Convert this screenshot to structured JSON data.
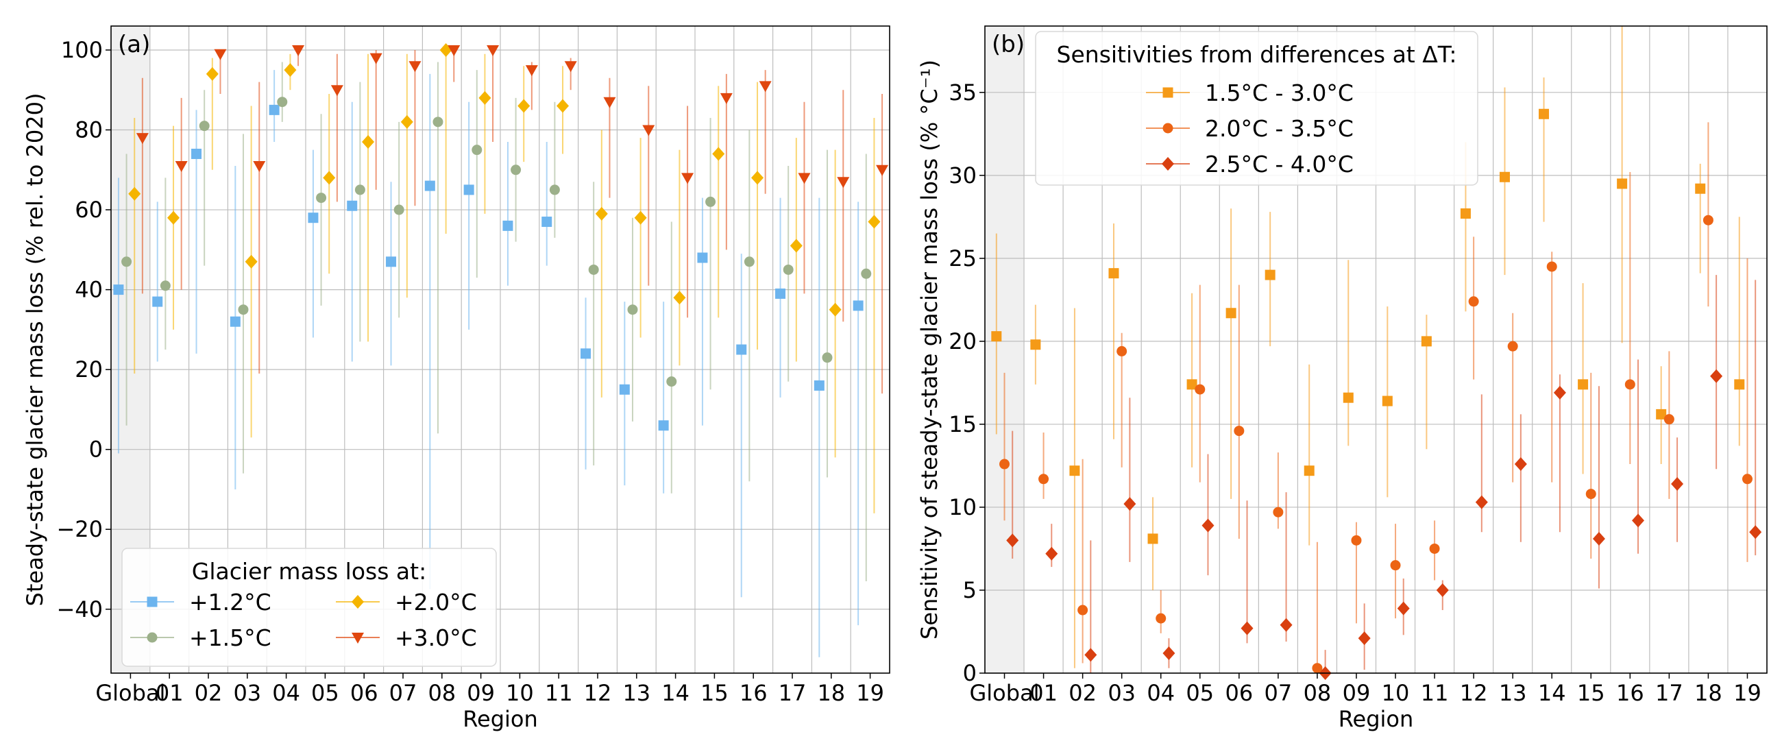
{
  "chart_data": [
    {
      "type": "scatter",
      "panel_label": "(a)",
      "xlabel": "Region",
      "ylabel": "Steady-state glacier mass loss (% rel. to 2020)",
      "categories": [
        "Global",
        "01",
        "02",
        "03",
        "04",
        "05",
        "06",
        "07",
        "08",
        "09",
        "10",
        "11",
        "12",
        "13",
        "14",
        "15",
        "16",
        "17",
        "18",
        "19"
      ],
      "ylim": [
        -56,
        106
      ],
      "yticks": [
        -40,
        -20,
        0,
        20,
        40,
        60,
        80,
        100
      ],
      "ytick_labels": [
        "−40",
        "−20",
        "0",
        "20",
        "40",
        "60",
        "80",
        "100"
      ],
      "grid": true,
      "legend": {
        "title": "Glacier mass loss at:",
        "placement": "bottom-left"
      },
      "series": [
        {
          "name": "+1.2°C",
          "marker": "square",
          "color": "#6cb4ee",
          "values": [
            40,
            37,
            74,
            32,
            85,
            58,
            61,
            47,
            66,
            65,
            56,
            57,
            24,
            15,
            6,
            48,
            25,
            39,
            16,
            36
          ],
          "low": [
            -1,
            22,
            24,
            -10,
            77,
            28,
            22,
            21,
            -35,
            30,
            41,
            46,
            -5,
            -9,
            -11,
            6,
            -37,
            13,
            -52,
            -44
          ],
          "high": [
            68,
            62,
            85,
            71,
            95,
            75,
            87,
            67,
            94,
            87,
            77,
            77,
            38,
            37,
            37,
            63,
            49,
            63,
            63,
            62
          ]
        },
        {
          "name": "+1.5°C",
          "marker": "circle",
          "color": "#9cb08a",
          "values": [
            47,
            41,
            81,
            35,
            87,
            63,
            65,
            60,
            82,
            75,
            70,
            65,
            45,
            35,
            17,
            62,
            47,
            45,
            23,
            44
          ],
          "low": [
            6,
            25,
            46,
            -6,
            82,
            36,
            27,
            33,
            4,
            43,
            52,
            53,
            -4,
            7,
            -11,
            15,
            -8,
            17,
            -7,
            -33
          ],
          "high": [
            74,
            68,
            90,
            79,
            97,
            84,
            92,
            82,
            97,
            95,
            88,
            87,
            67,
            58,
            57,
            83,
            80,
            71,
            75,
            74
          ]
        },
        {
          "name": "+2.0°C",
          "marker": "diamond",
          "color": "#f5b400",
          "values": [
            64,
            58,
            94,
            47,
            95,
            68,
            77,
            82,
            100,
            88,
            86,
            86,
            59,
            58,
            38,
            74,
            68,
            51,
            35,
            57
          ],
          "low": [
            19,
            30,
            70,
            3,
            90,
            44,
            27,
            38,
            54,
            59,
            72,
            74,
            13,
            28,
            21,
            33,
            25,
            22,
            -2,
            -16
          ],
          "high": [
            83,
            81,
            98,
            86,
            99,
            89,
            99,
            99,
            100,
            99,
            96,
            96,
            80,
            78,
            75,
            91,
            92,
            78,
            75,
            83
          ]
        },
        {
          "name": "+3.0°C",
          "marker": "triangle-down",
          "color": "#e0470e",
          "values": [
            78,
            71,
            99,
            71,
            100,
            90,
            98,
            96,
            100,
            100,
            95,
            96,
            87,
            80,
            68,
            88,
            91,
            68,
            67,
            70
          ],
          "low": [
            39,
            40,
            89,
            19,
            96,
            62,
            65,
            61,
            92,
            77,
            85,
            90,
            63,
            41,
            33,
            50,
            64,
            39,
            32,
            14
          ],
          "high": [
            93,
            88,
            100,
            92,
            100,
            99,
            100,
            100,
            100,
            100,
            97,
            98,
            93,
            91,
            86,
            94,
            95,
            87,
            90,
            89
          ]
        }
      ]
    },
    {
      "type": "scatter",
      "panel_label": "(b)",
      "xlabel": "Region",
      "ylabel": "Sensitivity of steady-state glacier mass loss (% °C⁻¹)",
      "categories": [
        "Global",
        "01",
        "02",
        "03",
        "04",
        "05",
        "06",
        "07",
        "08",
        "09",
        "10",
        "11",
        "12",
        "13",
        "14",
        "15",
        "16",
        "17",
        "18",
        "19"
      ],
      "ylim": [
        0,
        39
      ],
      "yticks": [
        0,
        5,
        10,
        15,
        20,
        25,
        30,
        35
      ],
      "ytick_labels": [
        "0",
        "5",
        "10",
        "15",
        "20",
        "25",
        "30",
        "35"
      ],
      "grid": true,
      "legend": {
        "title": "Sensitivities from differences at ΔT:",
        "placement": "top-left"
      },
      "series": [
        {
          "name": "1.5°C - 3.0°C",
          "marker": "square",
          "color": "#f59a17",
          "values": [
            20.3,
            19.8,
            12.2,
            24.1,
            8.1,
            17.4,
            21.7,
            24.0,
            12.2,
            16.6,
            16.4,
            20.0,
            27.7,
            29.9,
            33.7,
            17.4,
            29.5,
            15.6,
            29.2,
            17.4
          ],
          "low": [
            14.4,
            17.4,
            0.3,
            14.1,
            5.0,
            12.4,
            10.5,
            19.7,
            7.7,
            13.7,
            10.6,
            13.5,
            21.8,
            24.0,
            27.2,
            12.0,
            19.9,
            12.6,
            24.1,
            13.7
          ],
          "high": [
            26.5,
            22.2,
            22.0,
            27.1,
            10.6,
            22.9,
            28.0,
            27.8,
            18.6,
            24.9,
            22.1,
            21.6,
            32.0,
            35.3,
            35.9,
            23.5,
            39.0,
            18.5,
            30.7,
            27.5
          ]
        },
        {
          "name": "2.0°C - 3.5°C",
          "marker": "circle",
          "color": "#ec6414",
          "values": [
            12.6,
            11.7,
            3.8,
            19.4,
            3.3,
            17.1,
            14.6,
            9.7,
            0.3,
            8.0,
            6.5,
            7.5,
            22.4,
            19.7,
            24.5,
            10.8,
            17.4,
            15.3,
            27.3,
            11.7
          ],
          "low": [
            9.2,
            10.5,
            0.6,
            12.4,
            2.4,
            11.5,
            8.1,
            8.7,
            0.0,
            3.0,
            3.3,
            5.6,
            17.7,
            11.5,
            11.5,
            6.9,
            12.6,
            10.5,
            22.1,
            6.7
          ],
          "high": [
            18.1,
            14.5,
            12.9,
            20.5,
            5.0,
            23.4,
            23.4,
            13.3,
            7.9,
            9.1,
            9.0,
            9.2,
            26.3,
            21.7,
            25.4,
            18.1,
            30.2,
            19.4,
            33.2,
            25.0
          ]
        },
        {
          "name": "2.5°C - 4.0°C",
          "marker": "diamond",
          "color": "#d94010",
          "values": [
            8.0,
            7.2,
            1.1,
            10.2,
            1.2,
            8.9,
            2.7,
            2.9,
            0.0,
            2.1,
            3.9,
            5.0,
            10.3,
            12.6,
            16.9,
            8.1,
            9.2,
            11.4,
            17.9,
            8.5
          ],
          "low": [
            6.9,
            6.4,
            0.0,
            6.7,
            0.3,
            5.9,
            1.8,
            1.9,
            0.0,
            0.2,
            2.3,
            3.8,
            8.5,
            7.9,
            8.5,
            5.1,
            7.2,
            7.9,
            12.3,
            7.1
          ],
          "high": [
            14.6,
            9.0,
            8.0,
            16.6,
            2.1,
            13.2,
            10.4,
            10.9,
            1.4,
            4.2,
            5.7,
            5.6,
            16.8,
            15.6,
            18.0,
            17.3,
            18.9,
            14.2,
            24.0,
            23.7
          ]
        }
      ]
    }
  ]
}
